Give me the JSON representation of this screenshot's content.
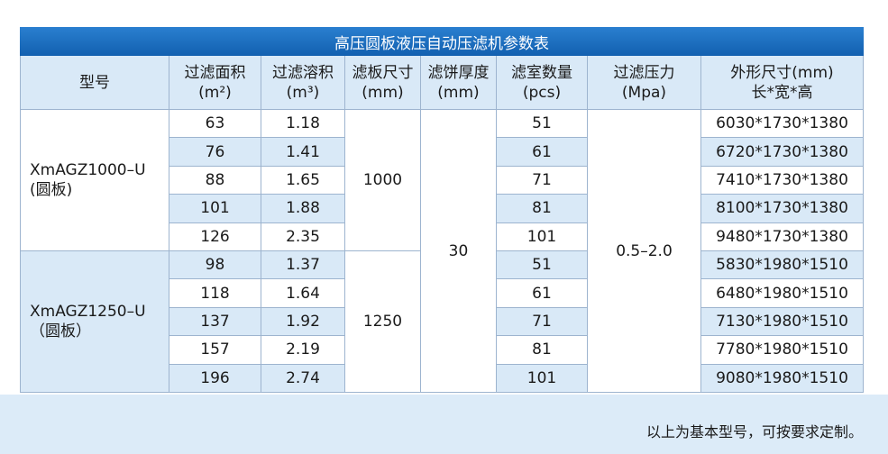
{
  "title": "高压圆板液压自动压滤机参数表",
  "headers": [
    [
      "型号"
    ],
    [
      "过滤面积",
      "(m²)"
    ],
    [
      "过滤溶积",
      "(m³)"
    ],
    [
      "滤板尺寸",
      "(mm)"
    ],
    [
      "滤饼厚度",
      "(mm)"
    ],
    [
      "滤室数量",
      "(pcs)"
    ],
    [
      "过滤压力",
      "(Mpa)"
    ],
    [
      "外形尺寸(mm)",
      "长*宽*高"
    ]
  ],
  "groups": [
    {
      "model": [
        "XmAGZ1000–U",
        "(圆板)"
      ],
      "plate": "1000",
      "rows": [
        [
          "63",
          "1.18",
          "51",
          "6030*1730*1380"
        ],
        [
          "76",
          "1.41",
          "61",
          "6720*1730*1380"
        ],
        [
          "88",
          "1.65",
          "71",
          "7410*1730*1380"
        ],
        [
          "101",
          "1.88",
          "81",
          "8100*1730*1380"
        ],
        [
          "126",
          "2.35",
          "101",
          "9480*1730*1380"
        ]
      ]
    },
    {
      "model": [
        "XmAGZ1250–U",
        "（圆板）"
      ],
      "plate": "1250",
      "rows": [
        [
          "98",
          "1.37",
          "51",
          "5830*1980*1510"
        ],
        [
          "118",
          "1.64",
          "61",
          "6480*1980*1510"
        ],
        [
          "137",
          "1.92",
          "71",
          "7130*1980*1510"
        ],
        [
          "157",
          "2.19",
          "81",
          "7780*1980*1510"
        ],
        [
          "196",
          "2.74",
          "101",
          "9080*1980*1510"
        ]
      ]
    }
  ],
  "thickness": "30",
  "pressure": "0.5–2.0",
  "note": "以上为基本型号，可按要求定制。"
}
